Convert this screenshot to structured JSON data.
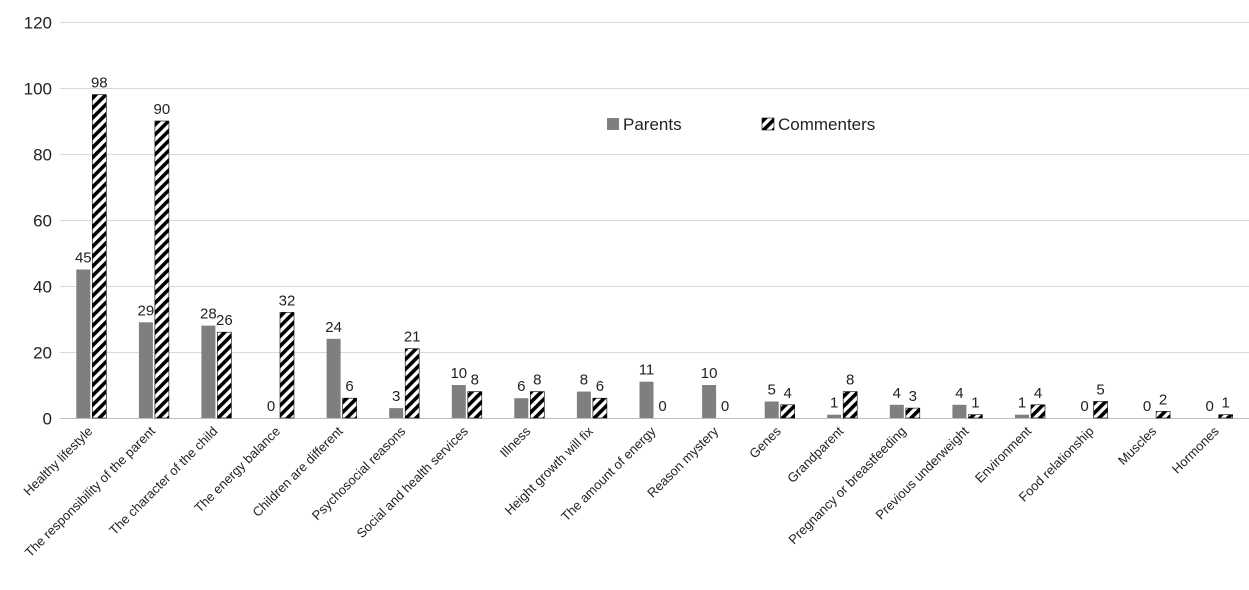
{
  "chart_data": {
    "type": "bar",
    "title": "",
    "xlabel": "",
    "ylabel": "",
    "ylim": [
      0,
      120
    ],
    "yticks": [
      0,
      20,
      40,
      60,
      80,
      100,
      120
    ],
    "grid": true,
    "legend_position": "top-center",
    "categories": [
      "Healthy lifestyle",
      "The responsibility of the parent",
      "The character of the child",
      "The energy balance",
      "Children are different",
      "Psychosocial reasons",
      "Social and health services",
      "Illness",
      "Height growth will fix",
      "The amount of energy",
      "Reason mystery",
      "Genes",
      "Grandparent",
      "Pregnancy or breastfeeding",
      "Previous underweight",
      "Environment",
      "Food relationship",
      "Muscles",
      "Hormones"
    ],
    "series": [
      {
        "name": "Parents",
        "pattern": "solid",
        "color": "#7f7f7f",
        "values": [
          45,
          29,
          28,
          0,
          24,
          3,
          10,
          6,
          8,
          11,
          10,
          5,
          1,
          4,
          4,
          1,
          0,
          0,
          0
        ]
      },
      {
        "name": "Commenters",
        "pattern": "diagonal-hatch",
        "color": "#000000",
        "values": [
          98,
          90,
          26,
          32,
          6,
          21,
          8,
          8,
          6,
          0,
          0,
          4,
          8,
          3,
          1,
          4,
          5,
          2,
          1
        ]
      }
    ]
  }
}
